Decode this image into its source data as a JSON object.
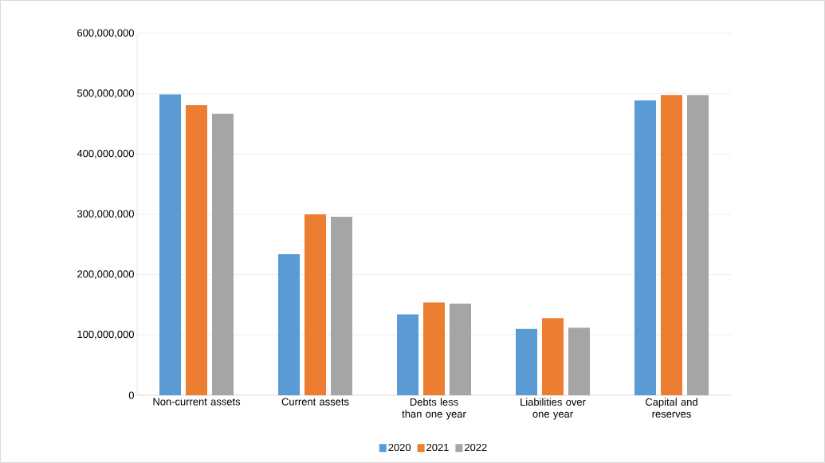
{
  "chart_data": {
    "type": "bar",
    "categories": [
      "Non-current assets",
      "Current assets",
      "Debts less than one year",
      "Liabilities over one year",
      "Capital and reserves"
    ],
    "series": [
      {
        "name": "2020",
        "color": "#5b9bd5",
        "values": [
          499000000,
          234000000,
          134000000,
          110000000,
          489000000
        ]
      },
      {
        "name": "2021",
        "color": "#ed7d31",
        "values": [
          481000000,
          300000000,
          154000000,
          128000000,
          498000000
        ]
      },
      {
        "name": "2022",
        "color": "#a5a5a5",
        "values": [
          467000000,
          296000000,
          152000000,
          112000000,
          498000000
        ]
      }
    ],
    "ylim": [
      0,
      600000000
    ],
    "yticks": [
      {
        "value": 0,
        "label": "0"
      },
      {
        "value": 100000000,
        "label": "100,000,000"
      },
      {
        "value": 200000000,
        "label": "200,000,000"
      },
      {
        "value": 300000000,
        "label": "300,000,000"
      },
      {
        "value": 400000000,
        "label": "400,000,000"
      },
      {
        "value": 500000000,
        "label": "500,000,000"
      },
      {
        "value": 600000000,
        "label": "600,000,000"
      }
    ],
    "grid": "y",
    "legend": "bottom"
  }
}
